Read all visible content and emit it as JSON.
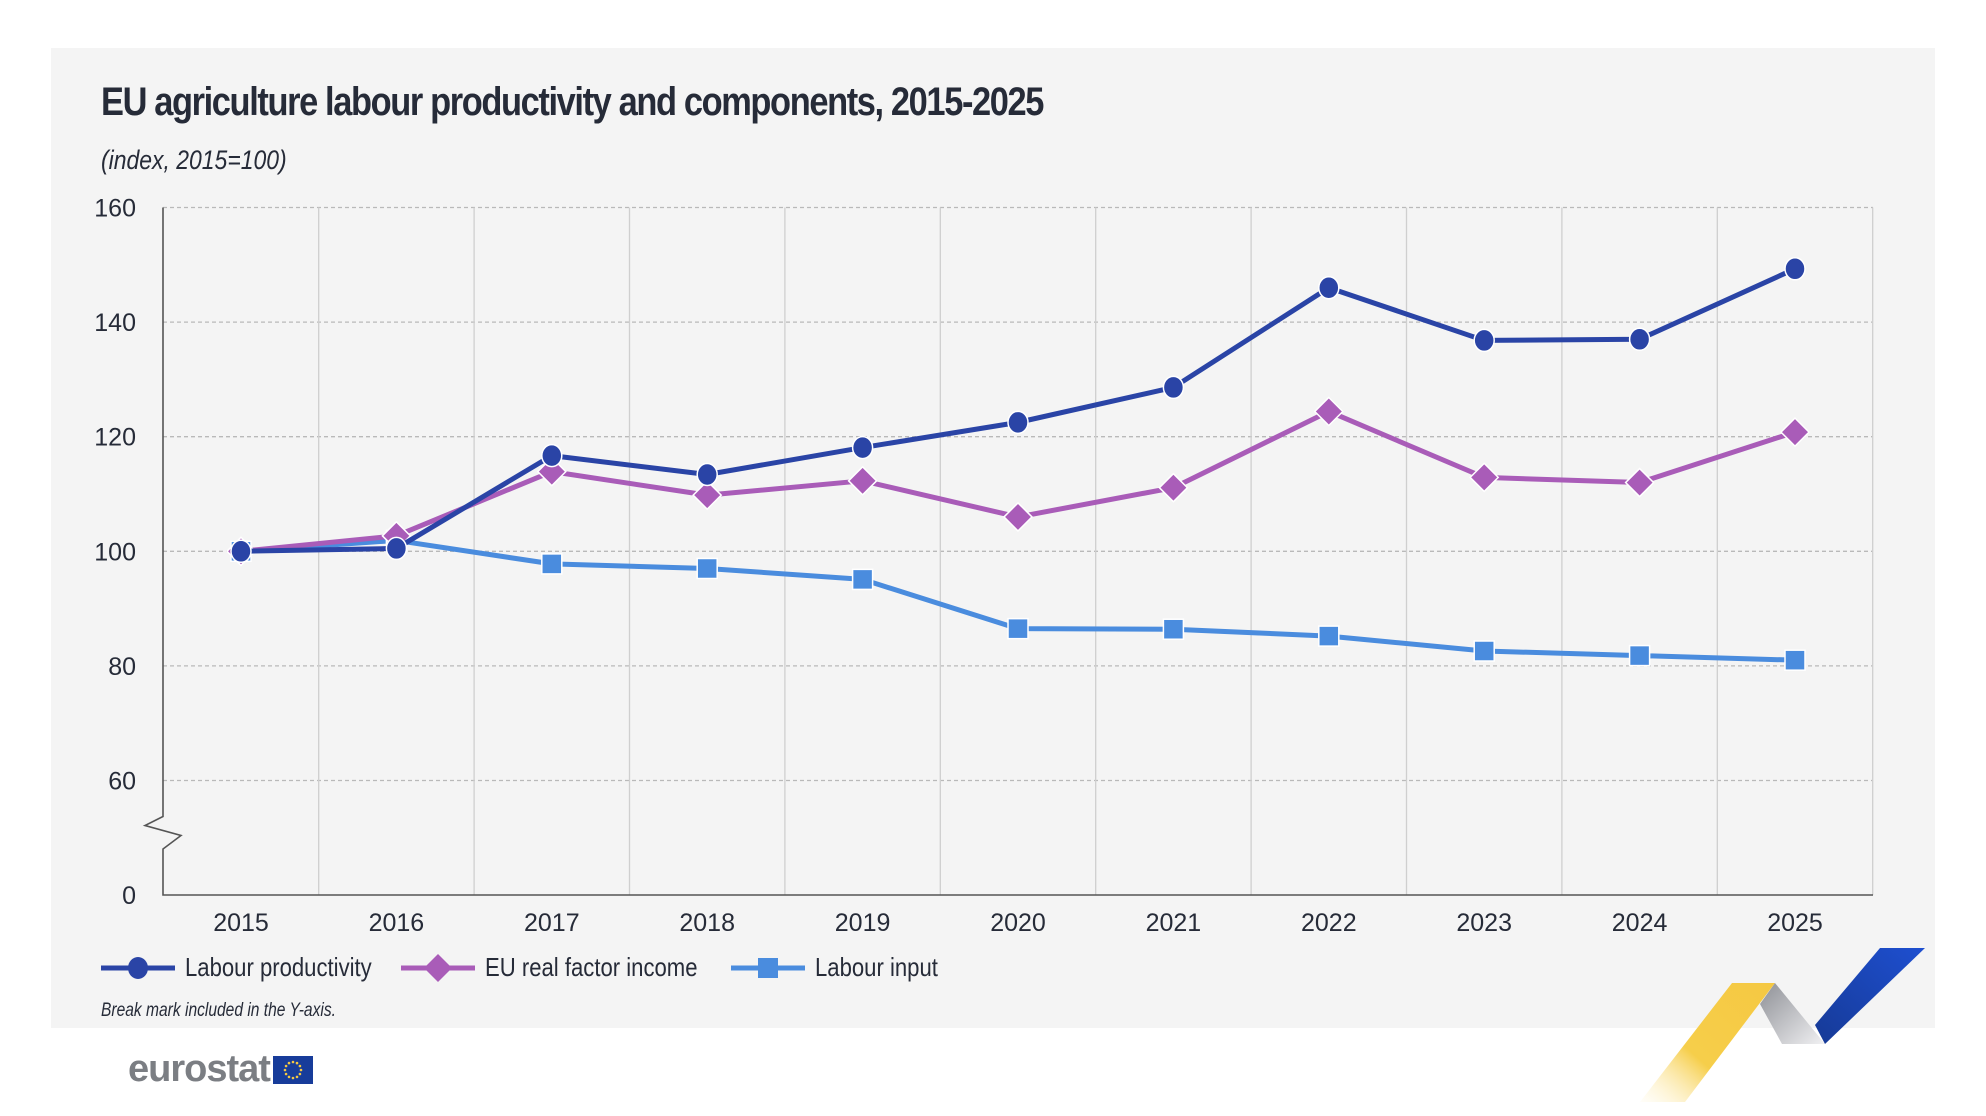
{
  "header": {
    "title": "EU agriculture labour productivity and components, 2015-2025",
    "subtitle": "(index, 2015=100)"
  },
  "footnote": "Break mark included in the Y-axis.",
  "logo": {
    "text": "eurostat",
    "flag_icon": "eu-flag-icon"
  },
  "colors": {
    "labour_productivity": "#2a44a6",
    "eu_real_factor_income": "#a95cb8",
    "labour_input": "#4a8cde",
    "panel_background": "#f4f4f4",
    "text": "#262b38"
  },
  "chart_data": {
    "type": "line",
    "title": "EU agriculture labour productivity and components, 2015-2025",
    "subtitle": "(index, 2015=100)",
    "xlabel": "",
    "ylabel": "",
    "categories": [
      "2015",
      "2016",
      "2017",
      "2018",
      "2019",
      "2020",
      "2021",
      "2022",
      "2023",
      "2024",
      "2025"
    ],
    "y_ticks": [
      "0",
      "60",
      "80",
      "100",
      "120",
      "140",
      "160"
    ],
    "ylim": [
      60,
      160
    ],
    "y_axis_break": "between 0 and 60",
    "grid": {
      "horizontal": "dashed",
      "vertical": "solid"
    },
    "legend_position": "bottom-left",
    "series": [
      {
        "name": "Labour productivity",
        "marker": "circle",
        "color": "#2a44a6",
        "values": [
          100,
          100.5,
          116.7,
          113.4,
          118.1,
          122.5,
          128.6,
          146.0,
          136.8,
          137.0,
          149.3
        ]
      },
      {
        "name": "EU real factor income",
        "marker": "diamond",
        "color": "#a95cb8",
        "values": [
          100,
          102.7,
          113.9,
          109.8,
          112.3,
          106.0,
          111.1,
          124.4,
          112.9,
          112.0,
          120.8
        ]
      },
      {
        "name": "Labour input",
        "marker": "square",
        "color": "#4a8cde",
        "values": [
          100,
          101.9,
          97.8,
          97.0,
          95.1,
          86.5,
          86.4,
          85.2,
          82.6,
          81.8,
          81.0
        ]
      }
    ]
  }
}
